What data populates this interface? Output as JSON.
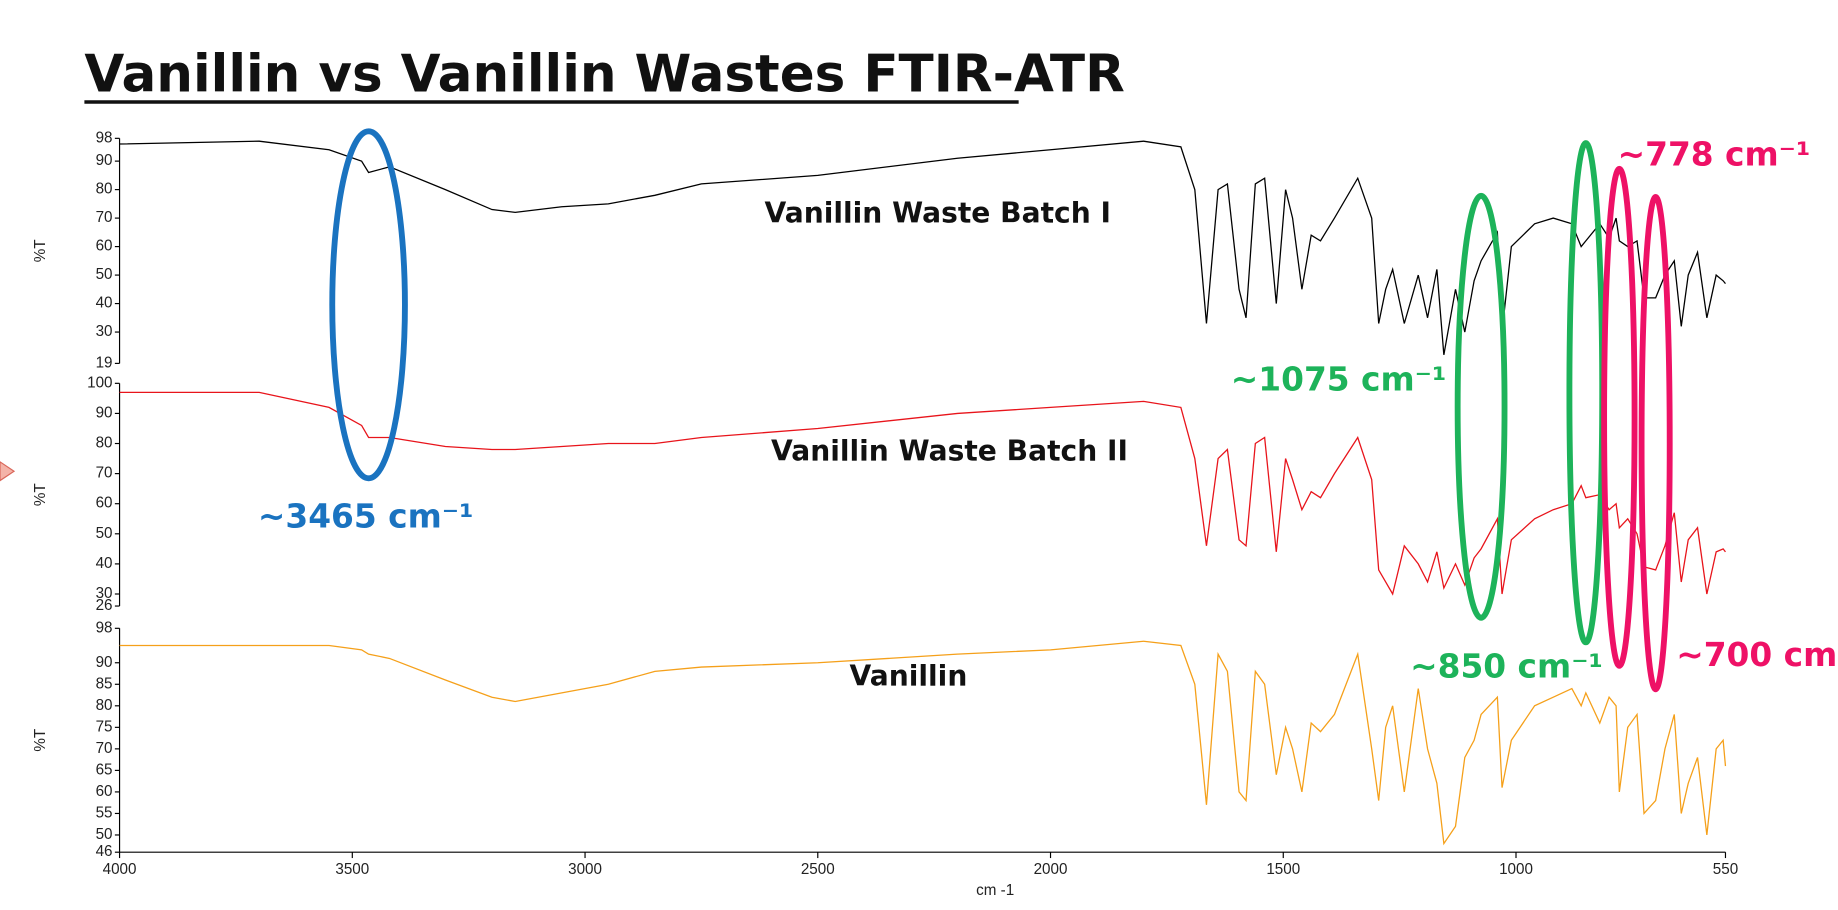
{
  "title": "Vanillin vs Vanillin Wastes FTIR-ATR",
  "annotations": [
    {
      "text": "~3465 cm⁻¹",
      "color": "#1a73c0",
      "x": 3465
    },
    {
      "text": "~1075 cm⁻¹",
      "color": "#1db35a",
      "x": 1075
    },
    {
      "text": "~850 cm⁻¹",
      "color": "#1db35a",
      "x": 850
    },
    {
      "text": "~778 cm⁻¹",
      "color": "#ee1166",
      "x": 778
    },
    {
      "text": "~700 cm",
      "color": "#ee1166",
      "x": 700
    }
  ],
  "chart_data": [
    {
      "type": "line",
      "ylabel": "%T",
      "xlim": [
        4000,
        550
      ],
      "ylim": [
        19,
        98
      ],
      "yticks": [
        98,
        90,
        80,
        70,
        60,
        50,
        40,
        30,
        19
      ],
      "x": [
        4000,
        3700,
        3550,
        3480,
        3465,
        3420,
        3300,
        3200,
        3150,
        3050,
        2950,
        2850,
        2750,
        2500,
        2200,
        2000,
        1800,
        1720,
        1690,
        1665,
        1640,
        1620,
        1595,
        1580,
        1560,
        1540,
        1515,
        1495,
        1480,
        1460,
        1440,
        1420,
        1390,
        1340,
        1310,
        1295,
        1280,
        1265,
        1240,
        1210,
        1190,
        1170,
        1155,
        1130,
        1110,
        1090,
        1075,
        1040,
        1030,
        1010,
        960,
        920,
        880,
        860,
        850,
        820,
        800,
        785,
        778,
        760,
        740,
        725,
        700,
        680,
        660,
        645,
        630,
        610,
        590,
        570,
        555,
        550
      ],
      "series": [
        {
          "name": "Vanillin Waste Batch I",
          "color": "#000000",
          "values": [
            96,
            97,
            94,
            90,
            86,
            88,
            80,
            73,
            72,
            74,
            75,
            78,
            82,
            85,
            91,
            94,
            97,
            95,
            80,
            33,
            80,
            82,
            45,
            35,
            82,
            84,
            40,
            80,
            70,
            45,
            64,
            62,
            70,
            84,
            70,
            33,
            45,
            52,
            33,
            50,
            35,
            52,
            22,
            45,
            30,
            48,
            55,
            65,
            30,
            60,
            68,
            70,
            68,
            60,
            62,
            68,
            63,
            70,
            62,
            60,
            62,
            42,
            42,
            50,
            55,
            32,
            50,
            58,
            35,
            50,
            48,
            47
          ]
        }
      ]
    },
    {
      "type": "line",
      "ylabel": "%T",
      "xlim": [
        4000,
        550
      ],
      "ylim": [
        26,
        100
      ],
      "yticks": [
        100,
        90,
        80,
        70,
        60,
        50,
        40,
        30,
        26
      ],
      "x": [
        4000,
        3700,
        3550,
        3480,
        3465,
        3420,
        3300,
        3200,
        3150,
        3050,
        2950,
        2850,
        2750,
        2500,
        2200,
        2000,
        1800,
        1720,
        1690,
        1665,
        1640,
        1620,
        1595,
        1580,
        1560,
        1540,
        1515,
        1495,
        1480,
        1460,
        1440,
        1420,
        1390,
        1340,
        1310,
        1295,
        1280,
        1265,
        1240,
        1210,
        1190,
        1170,
        1155,
        1130,
        1110,
        1090,
        1075,
        1040,
        1030,
        1010,
        960,
        920,
        880,
        860,
        850,
        820,
        800,
        785,
        778,
        760,
        740,
        725,
        700,
        680,
        660,
        645,
        630,
        610,
        590,
        570,
        555,
        550
      ],
      "series": [
        {
          "name": "Vanillin Waste Batch II",
          "color": "#e8141b",
          "values": [
            97,
            97,
            92,
            86,
            82,
            82,
            79,
            78,
            78,
            79,
            80,
            80,
            82,
            85,
            90,
            92,
            94,
            92,
            75,
            46,
            75,
            78,
            48,
            46,
            80,
            82,
            44,
            75,
            68,
            58,
            64,
            62,
            70,
            82,
            68,
            38,
            34,
            30,
            46,
            40,
            34,
            44,
            32,
            40,
            33,
            42,
            45,
            55,
            30,
            48,
            55,
            58,
            60,
            66,
            62,
            63,
            58,
            60,
            52,
            55,
            50,
            39,
            38,
            46,
            57,
            34,
            48,
            52,
            30,
            44,
            45,
            44
          ]
        }
      ]
    },
    {
      "type": "line",
      "ylabel": "%T",
      "xlabel": "cm -1",
      "xlim": [
        4000,
        550
      ],
      "ylim": [
        46,
        98
      ],
      "yticks": [
        98,
        90,
        85,
        80,
        75,
        70,
        65,
        60,
        55,
        50,
        46
      ],
      "xticks": [
        4000,
        3500,
        3000,
        2500,
        2000,
        1500,
        1000,
        550
      ],
      "x": [
        4000,
        3700,
        3550,
        3480,
        3465,
        3420,
        3300,
        3200,
        3150,
        3050,
        2950,
        2850,
        2750,
        2500,
        2200,
        2000,
        1800,
        1720,
        1690,
        1665,
        1640,
        1620,
        1595,
        1580,
        1560,
        1540,
        1515,
        1495,
        1480,
        1460,
        1440,
        1420,
        1390,
        1340,
        1310,
        1295,
        1280,
        1265,
        1240,
        1210,
        1190,
        1170,
        1155,
        1130,
        1110,
        1090,
        1075,
        1040,
        1030,
        1010,
        960,
        920,
        880,
        860,
        850,
        820,
        800,
        785,
        778,
        760,
        740,
        725,
        700,
        680,
        660,
        645,
        630,
        610,
        590,
        570,
        555,
        550
      ],
      "series": [
        {
          "name": "Vanillin",
          "color": "#f5a01a",
          "values": [
            94,
            94,
            94,
            93,
            92,
            91,
            86,
            82,
            81,
            83,
            85,
            88,
            89,
            90,
            92,
            93,
            95,
            94,
            85,
            57,
            92,
            88,
            60,
            58,
            88,
            85,
            64,
            75,
            70,
            60,
            76,
            74,
            78,
            92,
            70,
            58,
            75,
            80,
            60,
            84,
            70,
            62,
            48,
            52,
            68,
            72,
            78,
            82,
            61,
            72,
            80,
            82,
            84,
            80,
            83,
            76,
            82,
            80,
            60,
            75,
            78,
            55,
            58,
            70,
            78,
            55,
            62,
            68,
            50,
            70,
            72,
            66
          ]
        }
      ]
    }
  ]
}
